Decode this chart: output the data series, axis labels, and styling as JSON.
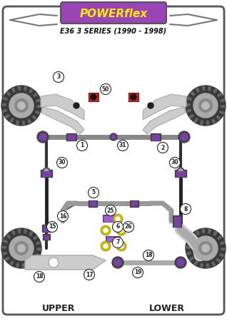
{
  "title_brand": "POWERFLEX",
  "title_model": "E36 3 SERIES (1990 - 1998)",
  "bg_color": "#ffffff",
  "brand_bg": "#9b44b8",
  "brand_text": "#ffee00",
  "model_text": "#111111",
  "purple": "#7b3fa8",
  "dark_gray": "#222222",
  "light_gray": "#bbbbbb",
  "arm_color": "#cccccc",
  "arm_edge": "#aaaaaa",
  "tire_dark": "#444444",
  "tire_mid": "#888888",
  "red_part": "#cc2222",
  "yellow_ring": "#ccbb00",
  "label_bg": "#ffffff",
  "label_border": "#333333",
  "lower_label": "LOWER",
  "upper_label": "UPPER",
  "bar_color": "#999999",
  "drop_color": "#555555"
}
